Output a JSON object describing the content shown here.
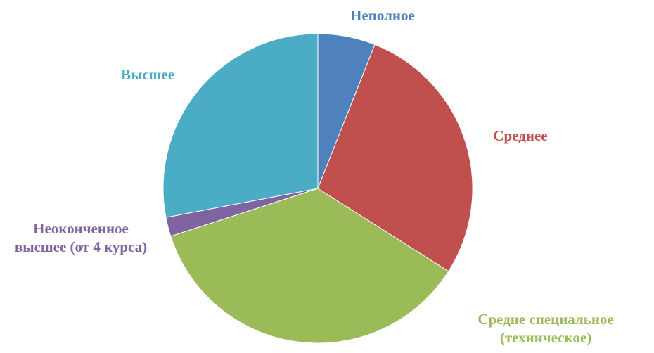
{
  "chart_data": {
    "type": "pie",
    "categories": [
      "Неполное",
      "Среднее",
      "Средне специальное (техническое)",
      "Неоконченное высшее (от 4 курса)",
      "Высшее"
    ],
    "values": [
      6,
      28,
      36,
      2,
      28
    ],
    "colors": [
      "#4f81bd",
      "#c0504d",
      "#9bbb59",
      "#8064a2",
      "#4bacc6"
    ]
  }
}
